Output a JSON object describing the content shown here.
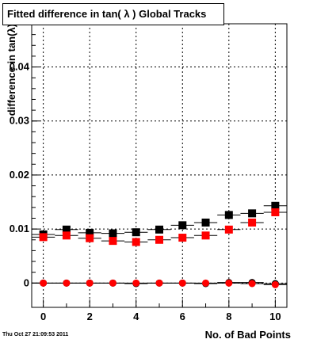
{
  "timestamp": "Thu Oct 27 21:09:53 2011",
  "chart_data": {
    "type": "scatter",
    "title": "Fitted difference in tan( λ )  Global Tracks",
    "xlabel": "No. of Bad Points",
    "ylabel": "difference in tan(λ)",
    "xlim": [
      -0.5,
      10.5
    ],
    "ylim": [
      -0.0045,
      0.048
    ],
    "x_ticks": [
      0,
      2,
      4,
      6,
      8,
      10
    ],
    "x_tick_labels": [
      "0",
      "2",
      "4",
      "6",
      "8",
      "10"
    ],
    "y_ticks": [
      0,
      0.01,
      0.02,
      0.03,
      0.04
    ],
    "y_tick_labels": [
      "0",
      "0.01",
      "0.02",
      "0.03",
      "0.04"
    ],
    "grid": true,
    "series": [
      {
        "marker": "square",
        "color": "#000000",
        "x": [
          0,
          1,
          2,
          3,
          4,
          5,
          6,
          7,
          8,
          9,
          10
        ],
        "y": [
          0.009,
          0.0099,
          0.0093,
          0.0092,
          0.0094,
          0.0099,
          0.0107,
          0.0112,
          0.0126,
          0.0129,
          0.0143
        ]
      },
      {
        "marker": "square",
        "color": "#ff0000",
        "x": [
          0,
          1,
          2,
          3,
          4,
          5,
          6,
          7,
          8,
          9,
          10
        ],
        "y": [
          0.0085,
          0.0088,
          0.0083,
          0.0078,
          0.0076,
          0.008,
          0.0084,
          0.0088,
          0.0099,
          0.0112,
          0.0131
        ]
      },
      {
        "marker": "circle",
        "color": "#000000",
        "x": [
          0,
          1,
          2,
          3,
          4,
          5,
          6,
          7,
          8,
          9,
          10
        ],
        "y": [
          0.0,
          0.0,
          0.0,
          0.0,
          -0.0001,
          0.0,
          0.0,
          -0.0001,
          0.0001,
          0.0001,
          -0.0001
        ]
      },
      {
        "marker": "circle",
        "color": "#ff0000",
        "x": [
          0,
          1,
          2,
          3,
          4,
          5,
          6,
          7,
          8,
          9,
          10
        ],
        "y": [
          0.0,
          0.0,
          0.0,
          0.0,
          0.0,
          0.0,
          0.0,
          0.0,
          0.0,
          -0.0001,
          -0.0003
        ]
      }
    ]
  }
}
